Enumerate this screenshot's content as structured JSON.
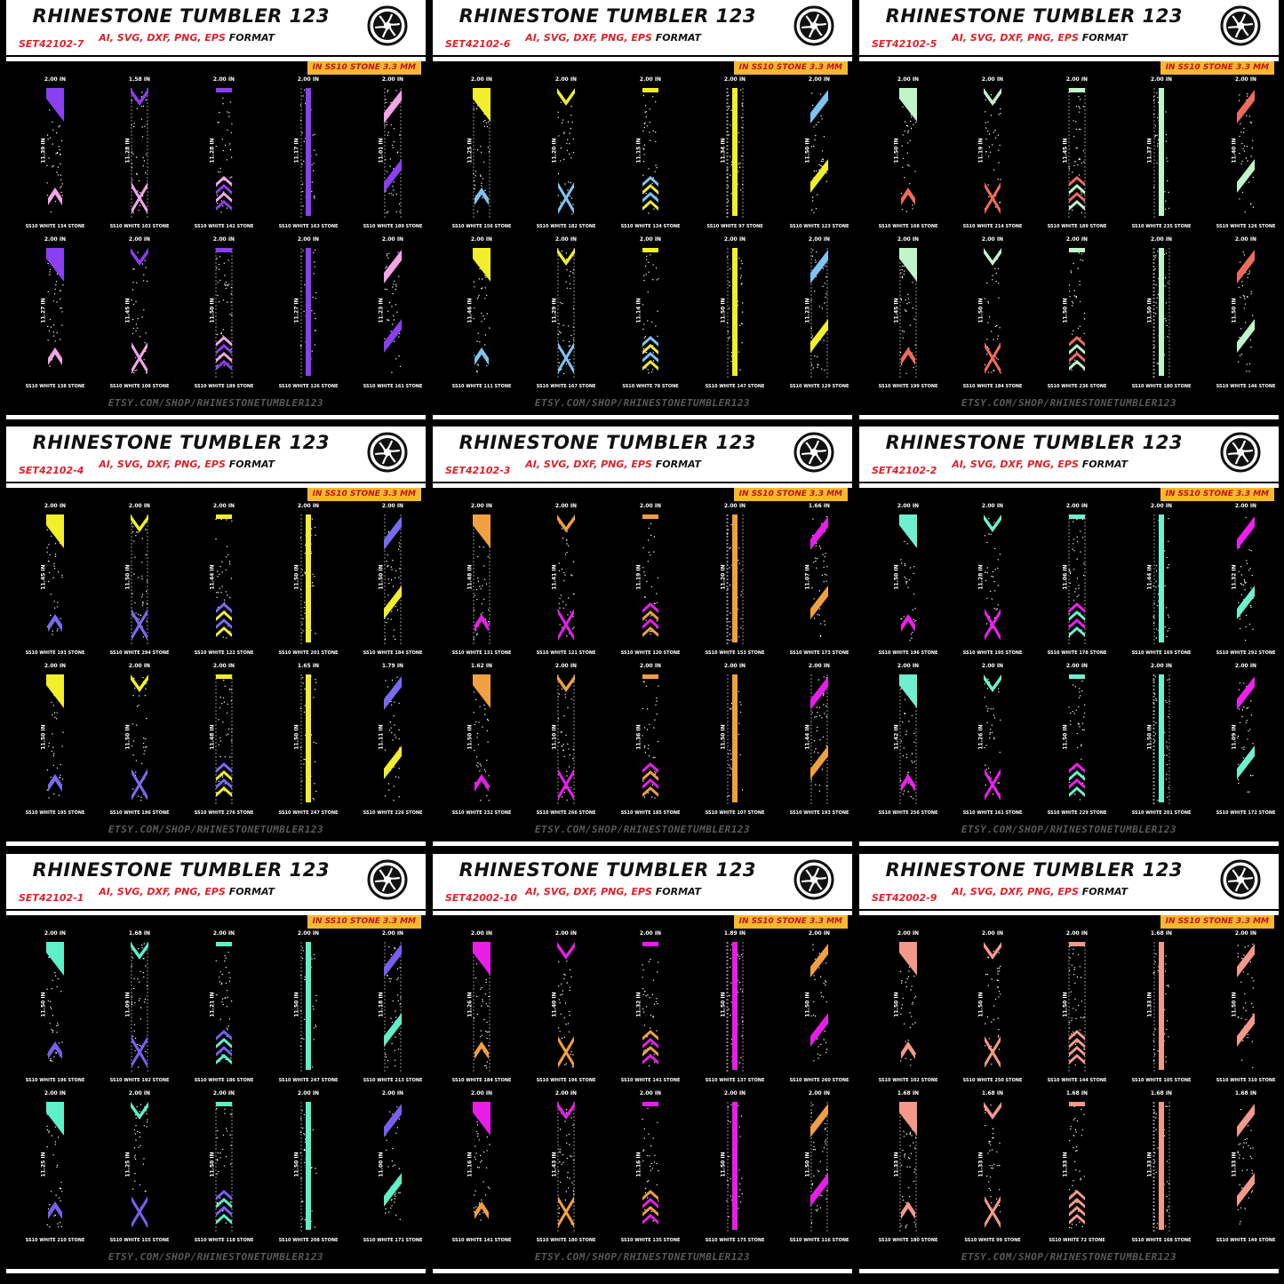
{
  "brand": "RHINESTONE TUMBLER 123",
  "formats": "AI, SVG, DXF, PNG, EPS",
  "format_word": "FORMAT",
  "stone_badge": "IN SS10 STONE 3.3 MM",
  "footer": "ETSY.COM/SHOP/RHINESTONETUMBLER123",
  "logo_icon": "tumbler-logo-icon",
  "panels": [
    {
      "set_id": "SET42102-7",
      "accent": "#8a3ff0",
      "accent2": "#f4a4e8",
      "strips": [
        {
          "w": "2.00 IN",
          "h": "11.39 IN",
          "stone": "SS10 WHITE 134 STONE"
        },
        {
          "w": "1.58 IN",
          "h": "11.28 IN",
          "stone": "SS10 WHITE 103 STONE"
        },
        {
          "w": "2.00 IN",
          "h": "11.28 IN",
          "stone": "SS10 WHITE 142 STONE"
        },
        {
          "w": "2.00 IN",
          "h": "11.17 IN",
          "stone": "SS10 WHITE 163 STONE"
        },
        {
          "w": "2.00 IN",
          "h": "11.01 IN",
          "stone": "SS10 WHITE 189 STONE"
        },
        {
          "w": "2.00 IN",
          "h": "11.27 IN",
          "stone": "SS10 WHITE 138 STONE"
        },
        {
          "w": "2.00 IN",
          "h": "11.45 IN",
          "stone": "SS10 WHITE 108 STONE"
        },
        {
          "w": "2.00 IN",
          "h": "11.50 IN",
          "stone": "SS10 WHITE 189 STONE"
        },
        {
          "w": "2.00 IN",
          "h": "11.27 IN",
          "stone": "SS10 WHITE 126 STONE"
        },
        {
          "w": "2.00 IN",
          "h": "11.23 IN",
          "stone": "SS10 WHITE 161 STONE"
        }
      ]
    },
    {
      "set_id": "SET42102-6",
      "accent": "#f2ee2a",
      "accent2": "#7cc4f2",
      "strips": [
        {
          "w": "2.00 IN",
          "h": "11.25 IN",
          "stone": "SS10 WHITE 156 STONE"
        },
        {
          "w": "2.00 IN",
          "h": "11.20 IN",
          "stone": "SS10 WHITE 182 STONE"
        },
        {
          "w": "2.00 IN",
          "h": "11.15 IN",
          "stone": "SS10 WHITE 134 STONE"
        },
        {
          "w": "2.00 IN",
          "h": "11.34 IN",
          "stone": "SS10 WHITE 97 STONE"
        },
        {
          "w": "2.00 IN",
          "h": "11.50 IN",
          "stone": "SS10 WHITE 123 STONE"
        },
        {
          "w": "2.00 IN",
          "h": "11.46 IN",
          "stone": "SS10 WHITE 111 STONE"
        },
        {
          "w": "2.00 IN",
          "h": "11.29 IN",
          "stone": "SS10 WHITE 167 STONE"
        },
        {
          "w": "2.00 IN",
          "h": "11.14 IN",
          "stone": "SS10 WHITE 78 STONE"
        },
        {
          "w": "2.00 IN",
          "h": "11.50 IN",
          "stone": "SS10 WHITE 147 STONE"
        },
        {
          "w": "2.00 IN",
          "h": "11.23 IN",
          "stone": "SS10 WHITE 129 STONE"
        }
      ]
    },
    {
      "set_id": "SET42102-5",
      "accent": "#bff5c8",
      "accent2": "#f06a5c",
      "strips": [
        {
          "w": "2.00 IN",
          "h": "11.50 IN",
          "stone": "SS10 WHITE 168 STONE"
        },
        {
          "w": "2.00 IN",
          "h": "11.19 IN",
          "stone": "SS10 WHITE 214 STONE"
        },
        {
          "w": "2.00 IN",
          "h": "11.45 IN",
          "stone": "SS10 WHITE 189 STONE"
        },
        {
          "w": "2.00 IN",
          "h": "11.37 IN",
          "stone": "SS10 WHITE 235 STONE"
        },
        {
          "w": "2.00 IN",
          "h": "11.40 IN",
          "stone": "SS10 WHITE 126 STONE"
        },
        {
          "w": "2.00 IN",
          "h": "11.45 IN",
          "stone": "SS10 WHITE 199 STONE"
        },
        {
          "w": "2.00 IN",
          "h": "11.50 IN",
          "stone": "SS10 WHITE 184 STONE"
        },
        {
          "w": "2.00 IN",
          "h": "11.50 IN",
          "stone": "SS10 WHITE 236 STONE"
        },
        {
          "w": "2.00 IN",
          "h": "11.50 IN",
          "stone": "SS10 WHITE 180 STONE"
        },
        {
          "w": "2.00 IN",
          "h": "11.50 IN",
          "stone": "SS10 WHITE 146 STONE"
        }
      ]
    },
    {
      "set_id": "SET42102-4",
      "accent": "#f2ee2a",
      "accent2": "#7a6af0",
      "strips": [
        {
          "w": "2.00 IN",
          "h": "11.45 IN",
          "stone": "SS10 WHITE 193 STONE"
        },
        {
          "w": "2.00 IN",
          "h": "11.50 IN",
          "stone": "SS10 WHITE 294 STONE"
        },
        {
          "w": "2.00 IN",
          "h": "11.44 IN",
          "stone": "SS10 WHITE 122 STONE"
        },
        {
          "w": "2.00 IN",
          "h": "11.50 IN",
          "stone": "SS10 WHITE 201 STONE"
        },
        {
          "w": "2.00 IN",
          "h": "11.50 IN",
          "stone": "SS10 WHITE 184 STONE"
        },
        {
          "w": "2.00 IN",
          "h": "11.50 IN",
          "stone": "SS10 WHITE 195 STONE"
        },
        {
          "w": "2.00 IN",
          "h": "11.50 IN",
          "stone": "SS10 WHITE 196 STONE"
        },
        {
          "w": "2.00 IN",
          "h": "11.48 IN",
          "stone": "SS10 WHITE 276 STONE"
        },
        {
          "w": "1.65 IN",
          "h": "11.50 IN",
          "stone": "SS10 WHITE 247 STONE"
        },
        {
          "w": "1.79 IN",
          "h": "11.11 IN",
          "stone": "SS10 WHITE 226 STONE"
        }
      ]
    },
    {
      "set_id": "SET42102-3",
      "accent": "#f0a040",
      "accent2": "#e81ee8",
      "strips": [
        {
          "w": "2.00 IN",
          "h": "11.48 IN",
          "stone": "SS10 WHITE 131 STONE"
        },
        {
          "w": "2.00 IN",
          "h": "11.41 IN",
          "stone": "SS10 WHITE 121 STONE"
        },
        {
          "w": "2.00 IN",
          "h": "11.19 IN",
          "stone": "SS10 WHITE 120 STONE"
        },
        {
          "w": "2.00 IN",
          "h": "11.20 IN",
          "stone": "SS10 WHITE 153 STONE"
        },
        {
          "w": "1.66 IN",
          "h": "11.07 IN",
          "stone": "SS10 WHITE 173 STONE"
        },
        {
          "w": "1.62 IN",
          "h": "11.50 IN",
          "stone": "SS10 WHITE 232 STONE"
        },
        {
          "w": "2.00 IN",
          "h": "11.10 IN",
          "stone": "SS10 WHITE 266 STONE"
        },
        {
          "w": "2.00 IN",
          "h": "11.36 IN",
          "stone": "SS10 WHITE 185 STONE"
        },
        {
          "w": "2.00 IN",
          "h": "11.50 IN",
          "stone": "SS10 WHITE 107 STONE"
        },
        {
          "w": "2.00 IN",
          "h": "11.44 IN",
          "stone": "SS10 WHITE 193 STONE"
        }
      ]
    },
    {
      "set_id": "SET42102-2",
      "accent": "#6ef0d0",
      "accent2": "#f01ef0",
      "strips": [
        {
          "w": "2.00 IN",
          "h": "11.50 IN",
          "stone": "SS10 WHITE 196 STONE"
        },
        {
          "w": "2.00 IN",
          "h": "11.28 IN",
          "stone": "SS10 WHITE 195 STONE"
        },
        {
          "w": "2.00 IN",
          "h": "11.06 IN",
          "stone": "SS10 WHITE 178 STONE"
        },
        {
          "w": "2.00 IN",
          "h": "11.44 IN",
          "stone": "SS10 WHITE 169 STONE"
        },
        {
          "w": "2.00 IN",
          "h": "11.32 IN",
          "stone": "SS10 WHITE 292 STONE"
        },
        {
          "w": "2.00 IN",
          "h": "11.42 IN",
          "stone": "SS10 WHITE 256 STONE"
        },
        {
          "w": "2.00 IN",
          "h": "11.26 IN",
          "stone": "SS10 WHITE 161 STONE"
        },
        {
          "w": "2.00 IN",
          "h": "11.50 IN",
          "stone": "SS10 WHITE 229 STONE"
        },
        {
          "w": "2.00 IN",
          "h": "11.50 IN",
          "stone": "SS10 WHITE 201 STONE"
        },
        {
          "w": "2.00 IN",
          "h": "11.09 IN",
          "stone": "SS10 WHITE 172 STONE"
        }
      ]
    },
    {
      "set_id": "SET42102-1",
      "accent": "#5ef0c8",
      "accent2": "#7a5ef0",
      "strips": [
        {
          "w": "2.00 IN",
          "h": "11.50 IN",
          "stone": "SS10 WHITE 196 STONE"
        },
        {
          "w": "1.68 IN",
          "h": "11.09 IN",
          "stone": "SS10 WHITE 192 STONE"
        },
        {
          "w": "2.00 IN",
          "h": "11.21 IN",
          "stone": "SS10 WHITE 186 STONE"
        },
        {
          "w": "2.00 IN",
          "h": "11.50 IN",
          "stone": "SS10 WHITE 247 STONE"
        },
        {
          "w": "2.00 IN",
          "h": "11.18 IN",
          "stone": "SS10 WHITE 213 STONE"
        },
        {
          "w": "2.00 IN",
          "h": "11.25 IN",
          "stone": "SS10 WHITE 210 STONE"
        },
        {
          "w": "2.00 IN",
          "h": "11.25 IN",
          "stone": "SS10 WHITE 155 STONE"
        },
        {
          "w": "2.00 IN",
          "h": "11.50 IN",
          "stone": "SS10 WHITE 118 STONE"
        },
        {
          "w": "2.00 IN",
          "h": "11.50 IN",
          "stone": "SS10 WHITE 208 STONE"
        },
        {
          "w": "2.00 IN",
          "h": "11.00 IN",
          "stone": "SS10 WHITE 171 STONE"
        }
      ]
    },
    {
      "set_id": "SET42002-10",
      "accent": "#e81ee8",
      "accent2": "#f0a040",
      "strips": [
        {
          "w": "2.00 IN",
          "h": "11.26 IN",
          "stone": "SS10 WHITE 184 STONE"
        },
        {
          "w": "2.00 IN",
          "h": "11.40 IN",
          "stone": "SS10 WHITE 196 STONE"
        },
        {
          "w": "2.00 IN",
          "h": "11.32 IN",
          "stone": "SS10 WHITE 141 STONE"
        },
        {
          "w": "1.89 IN",
          "h": "11.50 IN",
          "stone": "SS10 WHITE 137 STONE"
        },
        {
          "w": "2.00 IN",
          "h": "11.50 IN",
          "stone": "SS10 WHITE 260 STONE"
        },
        {
          "w": "2.00 IN",
          "h": "11.16 IN",
          "stone": "SS10 WHITE 141 STONE"
        },
        {
          "w": "2.00 IN",
          "h": "11.43 IN",
          "stone": "SS10 WHITE 180 STONE"
        },
        {
          "w": "2.00 IN",
          "h": "11.16 IN",
          "stone": "SS10 WHITE 135 STONE"
        },
        {
          "w": "2.00 IN",
          "h": "11.50 IN",
          "stone": "SS10 WHITE 175 STONE"
        },
        {
          "w": "2.00 IN",
          "h": "11.50 IN",
          "stone": "SS10 WHITE 116 STONE"
        }
      ]
    },
    {
      "set_id": "SET42002-9",
      "accent": "#f4988a",
      "accent2": "#f4988a",
      "strips": [
        {
          "w": "2.00 IN",
          "h": "11.50 IN",
          "stone": "SS10 WHITE 102 STONE"
        },
        {
          "w": "2.00 IN",
          "h": "11.50 IN",
          "stone": "SS10 WHITE 250 STONE"
        },
        {
          "w": "2.00 IN",
          "h": "11.50 IN",
          "stone": "SS10 WHITE 144 STONE"
        },
        {
          "w": "1.68 IN",
          "h": "11.33 IN",
          "stone": "SS10 WHITE 105 STONE"
        },
        {
          "w": "2.00 IN",
          "h": "11.50 IN",
          "stone": "SS10 WHITE 310 STONE"
        },
        {
          "w": "1.68 IN",
          "h": "11.33 IN",
          "stone": "SS10 WHITE 180 STONE"
        },
        {
          "w": "1.68 IN",
          "h": "11.33 IN",
          "stone": "SS10 WHITE 99 STONE"
        },
        {
          "w": "1.68 IN",
          "h": "11.33 IN",
          "stone": "SS10 WHITE 72 STONE"
        },
        {
          "w": "1.68 IN",
          "h": "11.33 IN",
          "stone": "SS10 WHITE 168 STONE"
        },
        {
          "w": "1.68 IN",
          "h": "11.33 IN",
          "stone": "SS10 WHITE 149 STONE"
        }
      ]
    }
  ]
}
